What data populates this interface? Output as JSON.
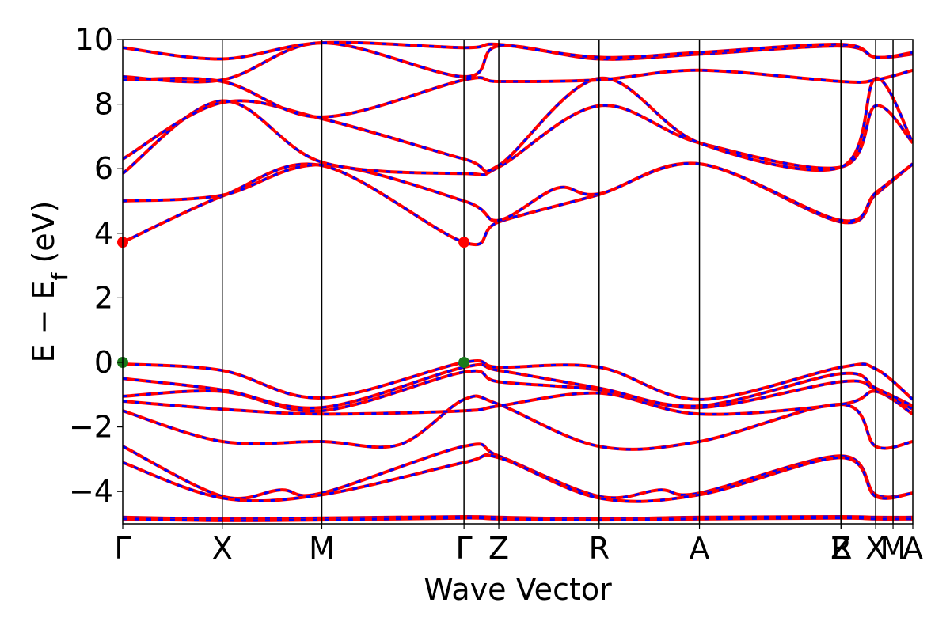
{
  "chart_data": {
    "type": "line",
    "title": "",
    "xlabel": "Wave Vector",
    "ylabel": "E − E",
    "ylabel_sub": "f",
    "ylabel_unit": " (eV)",
    "ylim": [
      -5,
      10
    ],
    "yticks": [
      -4,
      -2,
      0,
      2,
      4,
      6,
      8,
      10
    ],
    "ytick_labels": [
      "−4",
      "−2",
      "0",
      "2",
      "4",
      "6",
      "8",
      "10"
    ],
    "xlim": [
      0,
      1
    ],
    "kpoints": [
      {
        "label": "Γ",
        "x": 0.0
      },
      {
        "label": "X",
        "x": 0.126
      },
      {
        "label": "M",
        "x": 0.252
      },
      {
        "label": "Γ",
        "x": 0.432
      },
      {
        "label": "Z",
        "x": 0.476
      },
      {
        "label": "R",
        "x": 0.603
      },
      {
        "label": "A",
        "x": 0.73
      },
      {
        "label": "Z",
        "x": 0.909
      },
      {
        "label": "R",
        "x": 0.91
      },
      {
        "label": "X",
        "x": 0.953
      },
      {
        "label": "M",
        "x": 0.975
      },
      {
        "label": "A",
        "x": 1.0
      }
    ],
    "series_colors": {
      "band_a": "#ff0000",
      "band_b": "#0000ff"
    },
    "grid": false,
    "legend": "none",
    "bands": [
      [
        [
          0,
          -4.8
        ],
        [
          0.126,
          -4.85
        ],
        [
          0.252,
          -4.82
        ],
        [
          0.432,
          -4.78
        ],
        [
          0.476,
          -4.8
        ],
        [
          0.603,
          -4.85
        ],
        [
          0.73,
          -4.8
        ],
        [
          0.909,
          -4.78
        ],
        [
          0.953,
          -4.8
        ],
        [
          1.0,
          -4.8
        ]
      ],
      [
        [
          0,
          -4.85
        ],
        [
          0.126,
          -4.9
        ],
        [
          0.252,
          -4.88
        ],
        [
          0.432,
          -4.82
        ],
        [
          0.476,
          -4.85
        ],
        [
          0.603,
          -4.88
        ],
        [
          0.73,
          -4.85
        ],
        [
          0.909,
          -4.82
        ],
        [
          0.953,
          -4.85
        ],
        [
          1.0,
          -4.85
        ]
      ],
      [
        [
          0,
          -2.6
        ],
        [
          0.126,
          -4.15
        ],
        [
          0.2,
          -3.95
        ],
        [
          0.252,
          -4.05
        ],
        [
          0.432,
          -2.6
        ],
        [
          0.476,
          -2.9
        ],
        [
          0.603,
          -4.15
        ],
        [
          0.68,
          -3.95
        ],
        [
          0.73,
          -4.05
        ],
        [
          0.909,
          -2.9
        ],
        [
          0.953,
          -4.1
        ],
        [
          1.0,
          -4.05
        ]
      ],
      [
        [
          0,
          -3.1
        ],
        [
          0.126,
          -4.2
        ],
        [
          0.252,
          -4.1
        ],
        [
          0.432,
          -3.1
        ],
        [
          0.476,
          -2.95
        ],
        [
          0.603,
          -4.2
        ],
        [
          0.73,
          -4.1
        ],
        [
          0.909,
          -2.95
        ],
        [
          0.953,
          -4.15
        ],
        [
          1.0,
          -4.05
        ]
      ],
      [
        [
          0,
          -1.5
        ],
        [
          0.126,
          -2.45
        ],
        [
          0.252,
          -2.45
        ],
        [
          0.35,
          -2.55
        ],
        [
          0.432,
          -1.15
        ],
        [
          0.476,
          -1.3
        ],
        [
          0.603,
          -2.6
        ],
        [
          0.73,
          -2.45
        ],
        [
          0.909,
          -1.3
        ],
        [
          0.953,
          -2.6
        ],
        [
          1.0,
          -2.45
        ]
      ],
      [
        [
          0,
          -1.2
        ],
        [
          0.126,
          -1.45
        ],
        [
          0.252,
          -1.6
        ],
        [
          0.432,
          -1.5
        ],
        [
          0.476,
          -1.35
        ],
        [
          0.603,
          -0.95
        ],
        [
          0.73,
          -1.6
        ],
        [
          0.909,
          -1.3
        ],
        [
          0.953,
          -0.9
        ],
        [
          1.0,
          -1.6
        ]
      ],
      [
        [
          0,
          -1.05
        ],
        [
          0.126,
          -0.9
        ],
        [
          0.252,
          -1.5
        ],
        [
          0.432,
          -0.3
        ],
        [
          0.476,
          -0.6
        ],
        [
          0.603,
          -0.85
        ],
        [
          0.73,
          -1.4
        ],
        [
          0.909,
          -0.6
        ],
        [
          0.953,
          -0.85
        ],
        [
          1.0,
          -1.45
        ]
      ],
      [
        [
          0,
          -0.5
        ],
        [
          0.126,
          -0.85
        ],
        [
          0.252,
          -1.4
        ],
        [
          0.432,
          -0.15
        ],
        [
          0.476,
          -0.25
        ],
        [
          0.603,
          -0.8
        ],
        [
          0.73,
          -1.35
        ],
        [
          0.909,
          -0.35
        ],
        [
          0.953,
          -0.8
        ],
        [
          1.0,
          -1.35
        ]
      ],
      [
        [
          0,
          -0.05
        ],
        [
          0.126,
          -0.25
        ],
        [
          0.252,
          -1.1
        ],
        [
          0.432,
          0.0
        ],
        [
          0.476,
          -0.15
        ],
        [
          0.603,
          -0.15
        ],
        [
          0.73,
          -1.15
        ],
        [
          0.909,
          -0.15
        ],
        [
          0.953,
          -0.2
        ],
        [
          1.0,
          -1.15
        ]
      ],
      [
        [
          0,
          3.72
        ],
        [
          0.126,
          5.15
        ],
        [
          0.252,
          6.1
        ],
        [
          0.432,
          3.72
        ],
        [
          0.476,
          4.35
        ],
        [
          0.603,
          5.2
        ],
        [
          0.73,
          6.15
        ],
        [
          0.909,
          4.35
        ],
        [
          0.953,
          5.2
        ],
        [
          1.0,
          6.15
        ]
      ],
      [
        [
          0,
          5.0
        ],
        [
          0.126,
          5.18
        ],
        [
          0.252,
          6.12
        ],
        [
          0.432,
          5.0
        ],
        [
          0.476,
          4.4
        ],
        [
          0.55,
          5.4
        ],
        [
          0.603,
          5.22
        ],
        [
          0.73,
          6.15
        ],
        [
          0.909,
          4.4
        ],
        [
          0.953,
          5.25
        ],
        [
          1.0,
          6.15
        ]
      ],
      [
        [
          0,
          5.85
        ],
        [
          0.126,
          8.1
        ],
        [
          0.252,
          6.2
        ],
        [
          0.432,
          5.85
        ],
        [
          0.476,
          6.05
        ],
        [
          0.603,
          7.95
        ],
        [
          0.73,
          6.8
        ],
        [
          0.909,
          6.05
        ],
        [
          0.953,
          7.95
        ],
        [
          1.0,
          6.8
        ]
      ],
      [
        [
          0,
          6.3
        ],
        [
          0.126,
          8.05
        ],
        [
          0.252,
          7.55
        ],
        [
          0.432,
          6.3
        ],
        [
          0.476,
          6.1
        ],
        [
          0.603,
          8.8
        ],
        [
          0.73,
          6.8
        ],
        [
          0.909,
          6.05
        ],
        [
          0.953,
          8.8
        ],
        [
          1.0,
          6.8
        ]
      ],
      [
        [
          0,
          8.75
        ],
        [
          0.126,
          8.7
        ],
        [
          0.252,
          7.6
        ],
        [
          0.432,
          8.75
        ],
        [
          0.476,
          8.7
        ],
        [
          0.603,
          8.75
        ],
        [
          0.73,
          9.05
        ],
        [
          0.909,
          8.7
        ],
        [
          0.953,
          8.75
        ],
        [
          1.0,
          9.05
        ]
      ],
      [
        [
          0,
          8.85
        ],
        [
          0.126,
          8.75
        ],
        [
          0.252,
          9.9
        ],
        [
          0.432,
          8.85
        ],
        [
          0.476,
          9.8
        ],
        [
          0.603,
          9.4
        ],
        [
          0.73,
          9.55
        ],
        [
          0.909,
          9.8
        ],
        [
          0.953,
          9.45
        ],
        [
          1.0,
          9.55
        ]
      ],
      [
        [
          0,
          9.75
        ],
        [
          0.126,
          9.4
        ],
        [
          0.252,
          9.9
        ],
        [
          0.432,
          9.75
        ],
        [
          0.476,
          9.85
        ],
        [
          0.603,
          9.45
        ],
        [
          0.73,
          9.6
        ],
        [
          0.909,
          9.85
        ],
        [
          0.953,
          9.45
        ],
        [
          1.0,
          9.6
        ]
      ]
    ],
    "markers": [
      {
        "x": 0.0,
        "y": 3.72,
        "color": "#ff0000"
      },
      {
        "x": 0.432,
        "y": 3.72,
        "color": "#ff0000"
      },
      {
        "x": 0.0,
        "y": 0.0,
        "color": "#1a7a1a"
      },
      {
        "x": 0.432,
        "y": 0.0,
        "color": "#1a7a1a"
      }
    ]
  }
}
